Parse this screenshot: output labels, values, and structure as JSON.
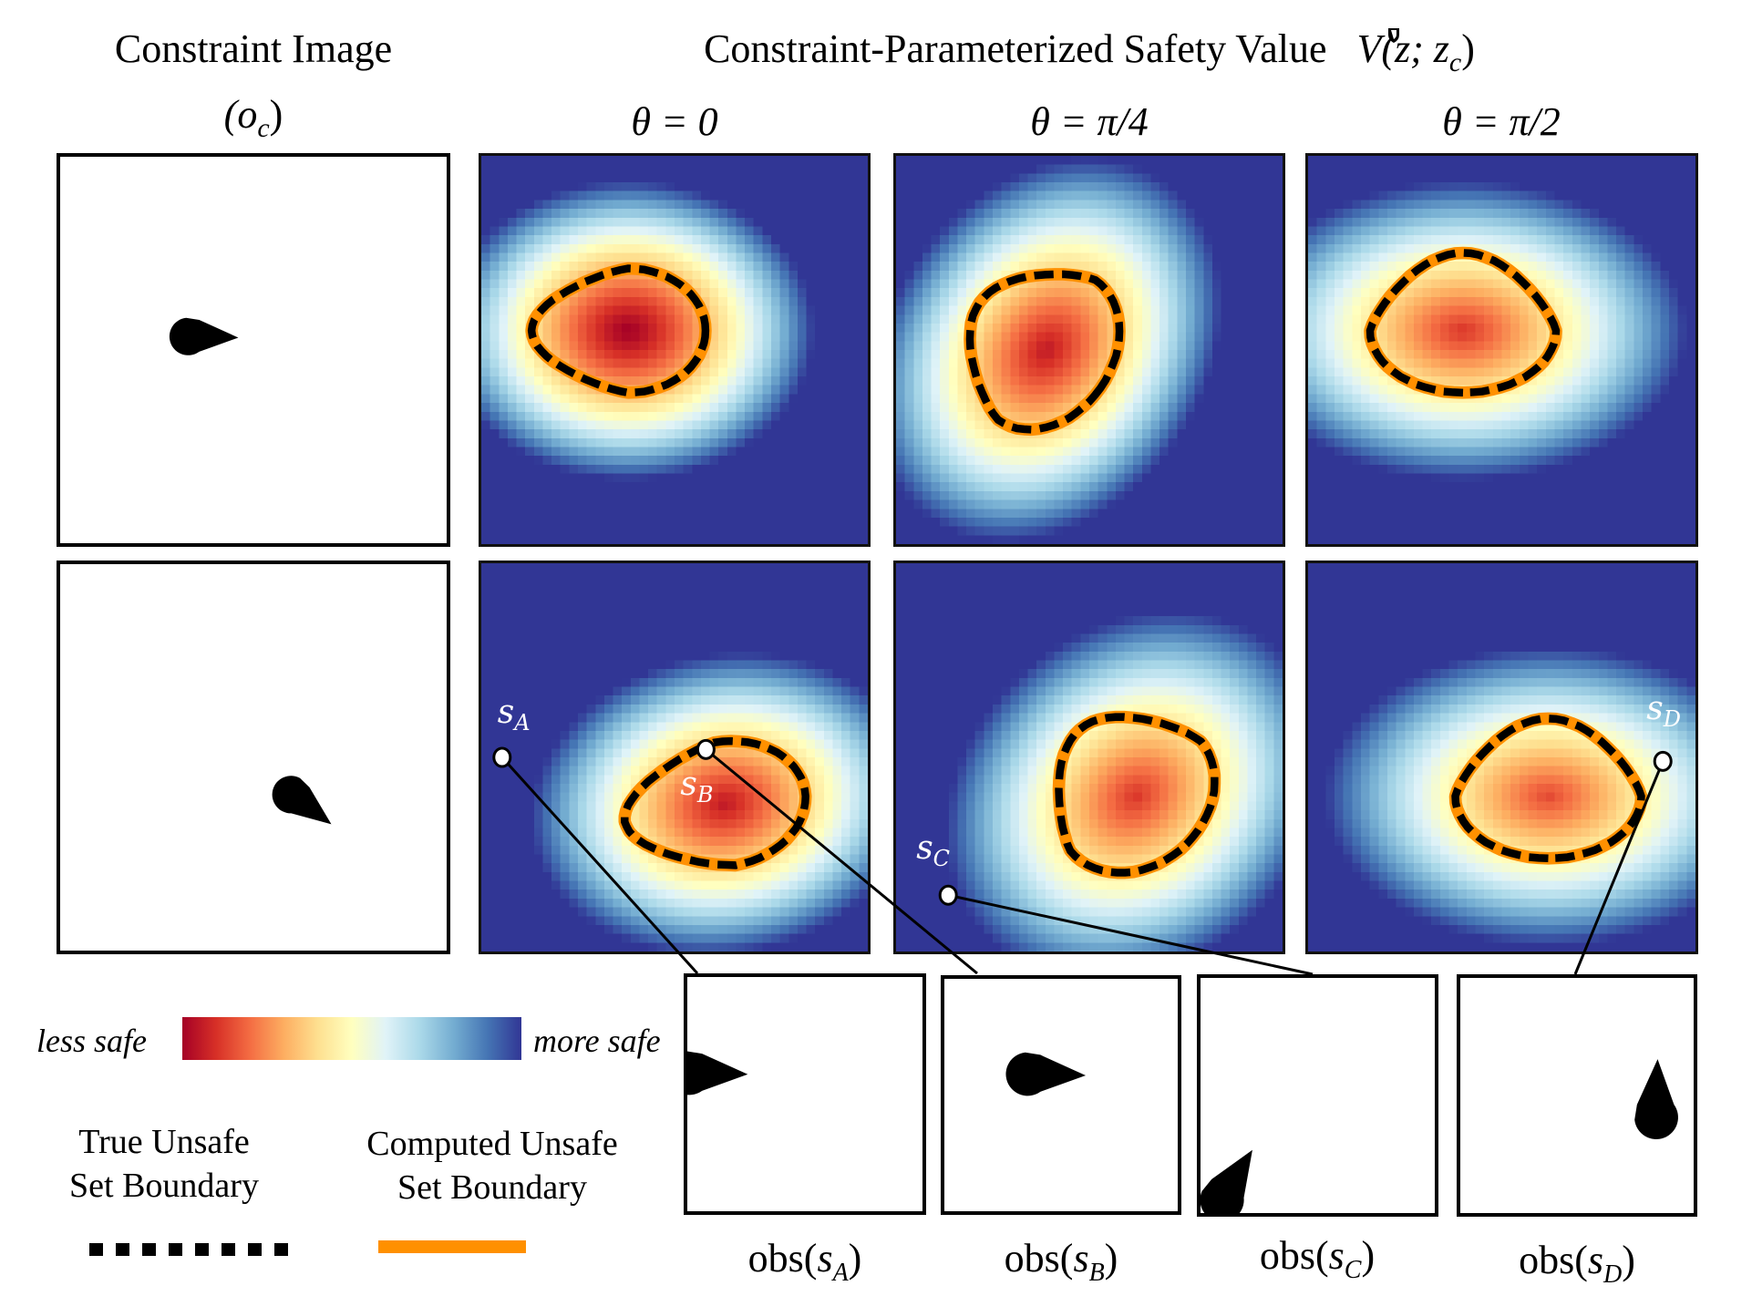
{
  "header": {
    "constraint_title": "Constraint Image",
    "constraint_symbol": "(o",
    "constraint_symbol_sub": "c",
    "constraint_symbol_close": ")",
    "value_title": "Constraint-Parameterized Safety Value",
    "value_symbol": "V(z; z",
    "value_symbol_sub": "c",
    "value_symbol_close": ")"
  },
  "columns": [
    {
      "label": "θ = 0"
    },
    {
      "label": "θ = π/4"
    },
    {
      "label": "θ = π/2"
    }
  ],
  "rows": [
    {
      "constraint": {
        "obstacle_center": [
          0.38,
          0.46
        ],
        "heading_deg": 0
      },
      "heatmaps": [
        {
          "peak": [
            0.38,
            0.45
          ],
          "spread": [
            0.2,
            0.16
          ],
          "tilt_deg": 0,
          "intensity": 1.0
        },
        {
          "peak": [
            0.39,
            0.5
          ],
          "spread": [
            0.17,
            0.22
          ],
          "tilt_deg": 35,
          "intensity": 0.9
        },
        {
          "peak": [
            0.4,
            0.45
          ],
          "spread": [
            0.16,
            0.24
          ],
          "tilt_deg": 90,
          "intensity": 0.82
        }
      ]
    },
    {
      "constraint": {
        "obstacle_center": [
          0.64,
          0.62
        ],
        "heading_deg": -35
      },
      "heatmaps": [
        {
          "peak": [
            0.63,
            0.62
          ],
          "spread": [
            0.21,
            0.16
          ],
          "tilt_deg": -10,
          "intensity": 0.9
        },
        {
          "peak": [
            0.62,
            0.6
          ],
          "spread": [
            0.18,
            0.22
          ],
          "tilt_deg": 50,
          "intensity": 0.82
        },
        {
          "peak": [
            0.62,
            0.6
          ],
          "spread": [
            0.16,
            0.24
          ],
          "tilt_deg": 90,
          "intensity": 0.78
        }
      ]
    }
  ],
  "sample_points": [
    {
      "id": "A",
      "label": "s",
      "sub": "A",
      "panel": 0,
      "pos": [
        0.06,
        0.5
      ]
    },
    {
      "id": "B",
      "label": "s",
      "sub": "B",
      "panel": 0,
      "pos": [
        0.58,
        0.48
      ]
    },
    {
      "id": "C",
      "label": "s",
      "sub": "C",
      "panel": 1,
      "pos": [
        0.14,
        0.85
      ]
    },
    {
      "id": "D",
      "label": "s",
      "sub": "D",
      "panel": 2,
      "pos": [
        0.91,
        0.51
      ]
    }
  ],
  "observations": [
    {
      "label": "obs(",
      "sub": "A",
      "close": ")",
      "drop": {
        "pos": [
          0.1,
          0.4
        ],
        "heading_deg": 0
      }
    },
    {
      "label": "obs(",
      "sub": "B",
      "close": ")",
      "drop": {
        "pos": [
          0.45,
          0.4
        ],
        "heading_deg": 0
      }
    },
    {
      "label": "obs(",
      "sub": "C",
      "close": ")",
      "drop": {
        "pos": [
          0.13,
          0.86
        ],
        "heading_deg": -60
      }
    },
    {
      "label": "obs(",
      "sub": "D",
      "close": ")",
      "drop": {
        "pos": [
          0.83,
          0.5
        ],
        "heading_deg": -90
      }
    }
  ],
  "legend": {
    "colorbar_left": "less safe",
    "colorbar_right": "more safe",
    "colorbar_colors": [
      "#a50026",
      "#d73027",
      "#f46d43",
      "#fdae61",
      "#fee090",
      "#ffffbf",
      "#e0f3f8",
      "#abd9e9",
      "#74add1",
      "#4575b4",
      "#313695"
    ],
    "true_boundary_line1": "True Unsafe",
    "true_boundary_line2": "Set Boundary",
    "computed_boundary_line1": "Computed Unsafe",
    "computed_boundary_line2": "Set Boundary",
    "true_boundary_color": "#000000",
    "computed_boundary_color": "#ff9000"
  }
}
